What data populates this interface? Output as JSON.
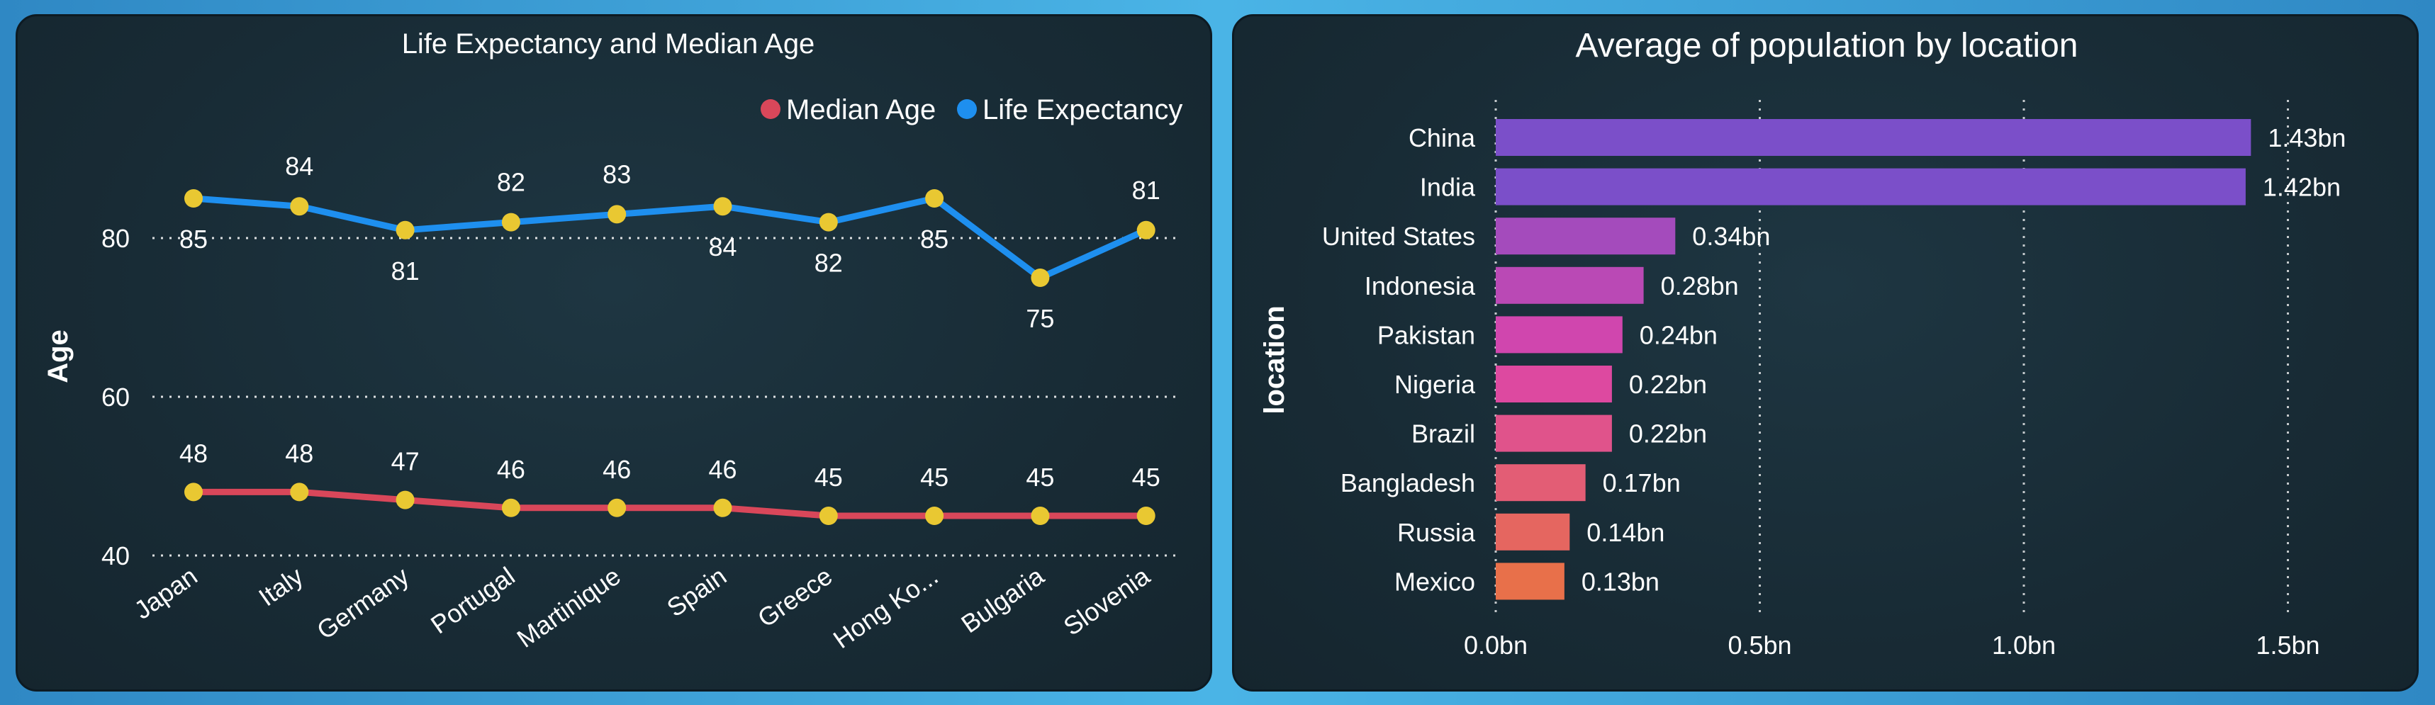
{
  "colors": {
    "median_age": "#d9475a",
    "life_expectancy": "#1e8fef",
    "marker": "#e9c832",
    "bar_gradient": [
      "#7b4fc9",
      "#dc45aa",
      "#e8704a"
    ],
    "gridline": "#ffffff"
  },
  "chart_data": [
    {
      "type": "line",
      "title": "Life Expectancy and Median Age",
      "xlabel": "",
      "ylabel": "Age",
      "ylim": [
        40,
        90
      ],
      "yticks": [
        40,
        60,
        80
      ],
      "legend": "top-right",
      "grid": true,
      "categories": [
        "Japan",
        "Italy",
        "Germany",
        "Portugal",
        "Martinique",
        "Spain",
        "Greece",
        "Hong Ko...",
        "Bulgaria",
        "Slovenia"
      ],
      "series": [
        {
          "name": "Median Age",
          "values": [
            48,
            48,
            47,
            46,
            46,
            46,
            45,
            45,
            45,
            45
          ]
        },
        {
          "name": "Life Expectancy",
          "values": [
            85,
            84,
            81,
            82,
            83,
            84,
            82,
            85,
            75,
            81
          ]
        }
      ]
    },
    {
      "type": "bar",
      "orientation": "horizontal",
      "title": "Average of population by location",
      "xlabel": "",
      "ylabel": "location",
      "xlim": [
        0,
        1.6
      ],
      "xticks": [
        0,
        0.5,
        1.0,
        1.5
      ],
      "xtick_labels": [
        "0.0bn",
        "0.5bn",
        "1.0bn",
        "1.5bn"
      ],
      "grid": true,
      "categories": [
        "China",
        "India",
        "United States",
        "Indonesia",
        "Pakistan",
        "Nigeria",
        "Brazil",
        "Bangladesh",
        "Russia",
        "Mexico"
      ],
      "values": [
        1.43,
        1.42,
        0.34,
        0.28,
        0.24,
        0.22,
        0.22,
        0.17,
        0.14,
        0.13
      ],
      "data_labels": [
        "1.43bn",
        "1.42bn",
        "0.34bn",
        "0.28bn",
        "0.24bn",
        "0.22bn",
        "0.22bn",
        "0.17bn",
        "0.14bn",
        "0.13bn"
      ]
    }
  ]
}
